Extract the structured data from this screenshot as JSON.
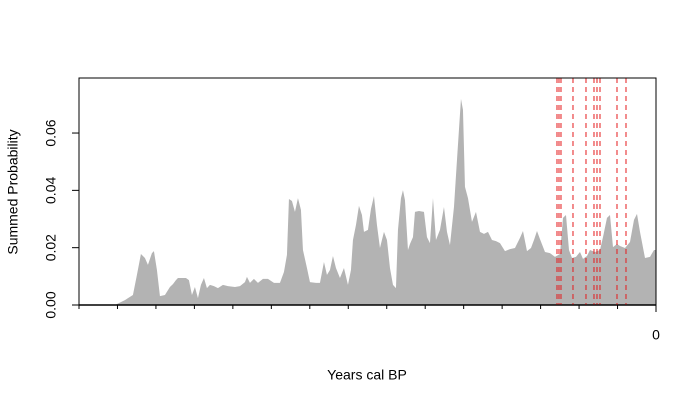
{
  "chart_data": {
    "type": "area",
    "x_label": "Years cal BP",
    "y_label": "Summed Probability",
    "xlim": [
      7500,
      0
    ],
    "ylim": [
      0,
      0.0792
    ],
    "xticks": [
      0
    ],
    "xminorticks": [
      7500,
      7000,
      6500,
      6000,
      5500,
      5000,
      4500,
      4000,
      3500,
      3000,
      2500,
      2000,
      1500,
      1000,
      500
    ],
    "yticks": [
      {
        "value": 0,
        "label": "0.00"
      },
      {
        "value": 0.02,
        "label": "0.02"
      },
      {
        "value": 0.04,
        "label": "0.04"
      },
      {
        "value": 0.06,
        "label": "0.06"
      }
    ],
    "color": "#b3b3b3",
    "x": [
      7500,
      7033,
      6903,
      6799,
      6747,
      6695,
      6643,
      6604,
      6552,
      6526,
      6487,
      6448,
      6383,
      6318,
      6279,
      6240,
      6214,
      6162,
      6110,
      6071,
      6032,
      5993,
      5954,
      5915,
      5876,
      5837,
      5798,
      5746,
      5694,
      5629,
      5564,
      5473,
      5408,
      5343,
      5317,
      5278,
      5226,
      5174,
      5109,
      5044,
      4966,
      4888,
      4836,
      4797,
      4771,
      4732,
      4693,
      4654,
      4615,
      4589,
      4537,
      4498,
      4420,
      4368,
      4316,
      4277,
      4238,
      4199,
      4160,
      4108,
      4056,
      4004,
      3965,
      3939,
      3900,
      3861,
      3822,
      3796,
      3744,
      3705,
      3666,
      3627,
      3588,
      3536,
      3497,
      3458,
      3419,
      3380,
      3354,
      3315,
      3289,
      3263,
      3224,
      3198,
      3159,
      3133,
      3081,
      3016,
      2977,
      2938,
      2899,
      2860,
      2808,
      2756,
      2717,
      2678,
      2626,
      2587,
      2535,
      2509,
      2483,
      2444,
      2392,
      2340,
      2288,
      2236,
      2184,
      2132,
      2080,
      2028,
      1963,
      1898,
      1833,
      1768,
      1729,
      1677,
      1625,
      1586,
      1547,
      1508,
      1443,
      1378,
      1313,
      1248,
      1209,
      1170,
      1131,
      1092,
      1040,
      988,
      949,
      897,
      858,
      793,
      728,
      689,
      637,
      598,
      559,
      507,
      468,
      403,
      338,
      286,
      247,
      208,
      143,
      78,
      26,
      0
    ],
    "values": [
      0,
      0,
      0.0017,
      0.0035,
      0.0105,
      0.0178,
      0.0164,
      0.014,
      0.0181,
      0.0188,
      0.0122,
      0.0031,
      0.0035,
      0.0063,
      0.0073,
      0.0087,
      0.0094,
      0.0094,
      0.0094,
      0.0087,
      0.0035,
      0.0063,
      0.0024,
      0.007,
      0.0094,
      0.0059,
      0.007,
      0.0066,
      0.0059,
      0.007,
      0.0066,
      0.0063,
      0.0066,
      0.008,
      0.0098,
      0.0077,
      0.0091,
      0.0077,
      0.0091,
      0.0091,
      0.0077,
      0.0077,
      0.0115,
      0.0175,
      0.037,
      0.0363,
      0.0325,
      0.0373,
      0.0332,
      0.0192,
      0.0129,
      0.008,
      0.0077,
      0.0077,
      0.015,
      0.0105,
      0.0122,
      0.0171,
      0.0129,
      0.0094,
      0.0129,
      0.007,
      0.0122,
      0.0227,
      0.0279,
      0.0346,
      0.0314,
      0.0255,
      0.0262,
      0.0335,
      0.038,
      0.0279,
      0.0199,
      0.0255,
      0.0227,
      0.0129,
      0.007,
      0.0059,
      0.0262,
      0.0373,
      0.0401,
      0.0366,
      0.0192,
      0.0213,
      0.0237,
      0.0325,
      0.0328,
      0.0325,
      0.0237,
      0.0216,
      0.0373,
      0.0227,
      0.0262,
      0.0342,
      0.0255,
      0.0209,
      0.0342,
      0.0506,
      0.0719,
      0.0681,
      0.0412,
      0.0373,
      0.029,
      0.0325,
      0.0255,
      0.0248,
      0.0255,
      0.0227,
      0.0223,
      0.0216,
      0.0188,
      0.0195,
      0.0199,
      0.0234,
      0.0258,
      0.0188,
      0.0199,
      0.0227,
      0.0258,
      0.023,
      0.0185,
      0.0181,
      0.0168,
      0.0178,
      0.0304,
      0.0314,
      0.0192,
      0.0164,
      0.0168,
      0.0185,
      0.0161,
      0.0171,
      0.0192,
      0.0185,
      0.0192,
      0.0237,
      0.0304,
      0.0314,
      0.0202,
      0.0213,
      0.0206,
      0.0199,
      0.022,
      0.0297,
      0.0318,
      0.0255,
      0.0164,
      0.0168,
      0.0192,
      0.0192
    ],
    "markers": [
      1287,
      1261,
      1235,
      1079,
      910,
      806,
      767,
      728,
      507,
      390
    ],
    "marker_color": "#e41a1c"
  }
}
